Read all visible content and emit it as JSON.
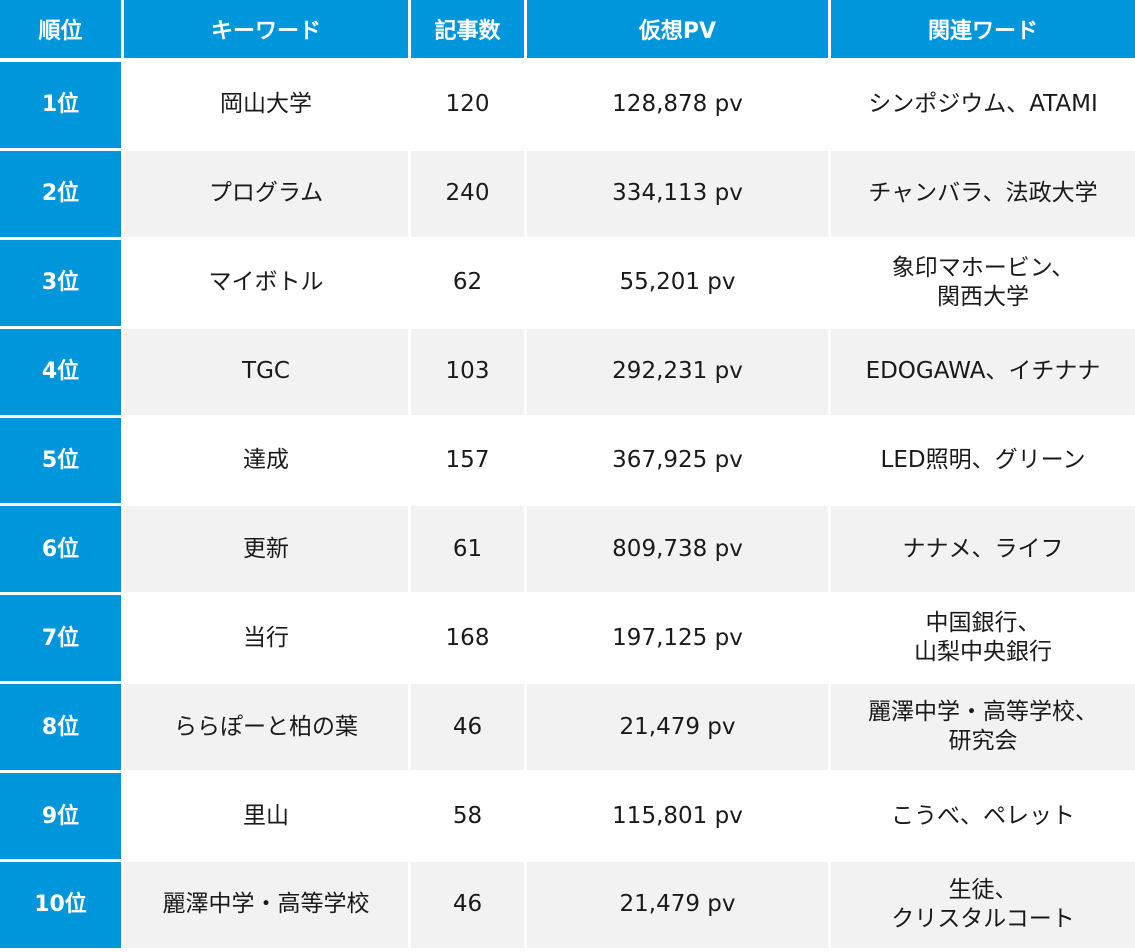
{
  "table": {
    "headers": {
      "rank": "順位",
      "keyword": "キーワード",
      "articles": "記事数",
      "pv": "仮想PV",
      "related": "関連ワード"
    },
    "rows": [
      {
        "rank": "1位",
        "keyword": "岡山大学",
        "articles": "120",
        "pv": "128,878 pv",
        "related": "シンポジウム、ATAMI"
      },
      {
        "rank": "2位",
        "keyword": "プログラム",
        "articles": "240",
        "pv": "334,113 pv",
        "related": "チャンバラ、法政大学"
      },
      {
        "rank": "3位",
        "keyword": "マイボトル",
        "articles": "62",
        "pv": "55,201 pv",
        "related": "象印マホービン、\n関西大学"
      },
      {
        "rank": "4位",
        "keyword": "TGC",
        "articles": "103",
        "pv": "292,231 pv",
        "related": "EDOGAWA、イチナナ"
      },
      {
        "rank": "5位",
        "keyword": "達成",
        "articles": "157",
        "pv": "367,925 pv",
        "related": "LED照明、グリーン"
      },
      {
        "rank": "6位",
        "keyword": "更新",
        "articles": "61",
        "pv": "809,738 pv",
        "related": "ナナメ、ライフ"
      },
      {
        "rank": "7位",
        "keyword": "当行",
        "articles": "168",
        "pv": "197,125 pv",
        "related": "中国銀行、\n山梨中央銀行"
      },
      {
        "rank": "8位",
        "keyword": "ららぽーと柏の葉",
        "articles": "46",
        "pv": "21,479 pv",
        "related": "麗澤中学・高等学校、\n研究会"
      },
      {
        "rank": "9位",
        "keyword": "里山",
        "articles": "58",
        "pv": "115,801 pv",
        "related": "こうべ、ペレット"
      },
      {
        "rank": "10位",
        "keyword": "麗澤中学・高等学校",
        "articles": "46",
        "pv": "21,479 pv",
        "related": "生徒、\nクリスタルコート"
      }
    ]
  },
  "colors": {
    "header_bg": "#0096db",
    "rank_bg": "#0096db",
    "row_alt_bg": "#f2f2f2",
    "row_bg": "#ffffff"
  }
}
